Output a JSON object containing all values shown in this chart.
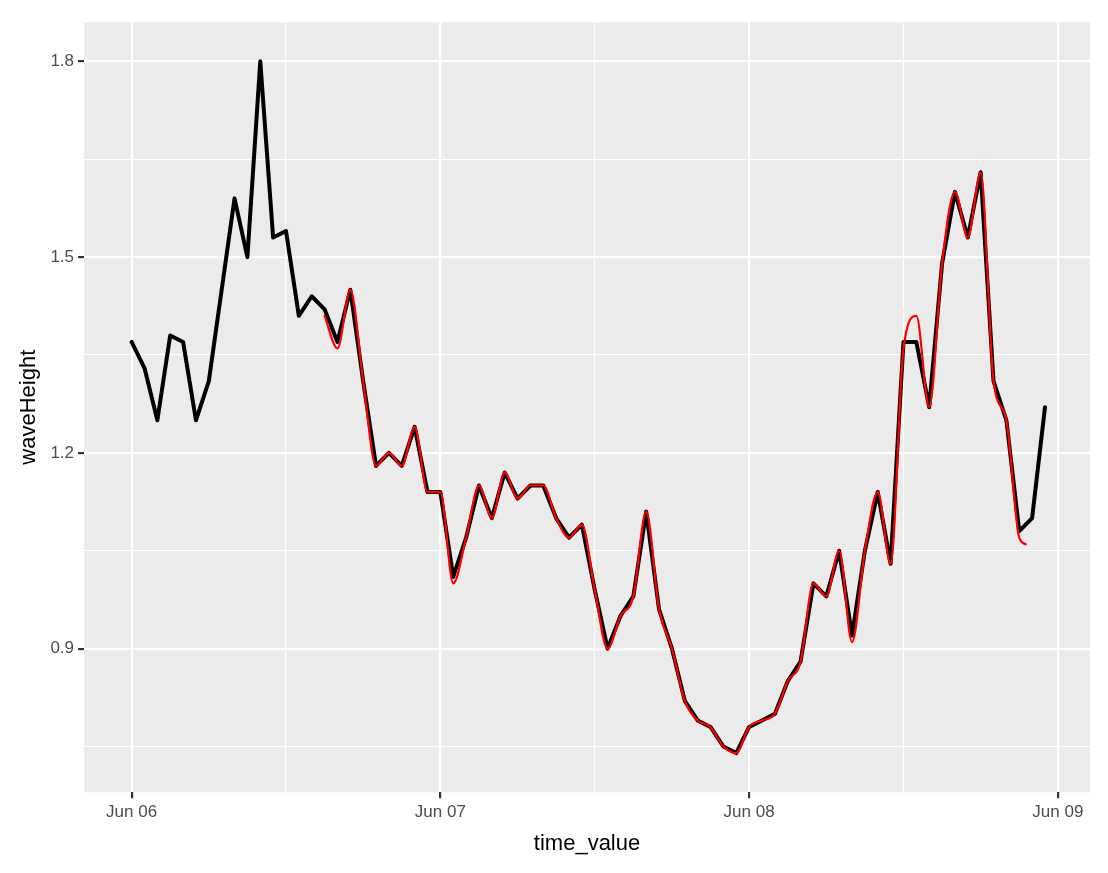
{
  "chart_data": {
    "type": "line",
    "xlabel": "time_value",
    "ylabel": "waveHeight",
    "grid": true,
    "marker": "none",
    "line_style": "solid",
    "xlim": [
      "--06-05T20:18",
      "--06-09T02:30"
    ],
    "xticks": [
      {
        "value": "--06-06",
        "label": "Jun 06"
      },
      {
        "value": "--06-06T12:00",
        "label": null
      },
      {
        "value": "--06-07",
        "label": "Jun 07"
      },
      {
        "value": "--06-07T12:00",
        "label": null
      },
      {
        "value": "--06-08",
        "label": "Jun 08"
      },
      {
        "value": "--06-08T12:00",
        "label": null
      },
      {
        "value": "--06-09",
        "label": "Jun 09"
      }
    ],
    "ylim": [
      0.68,
      1.86
    ],
    "yticks": [
      {
        "value": 0.75,
        "label": null
      },
      0.9,
      {
        "value": 1.05,
        "label": null
      },
      1.2,
      {
        "value": 1.35,
        "label": null
      },
      1.5,
      {
        "value": 1.65,
        "label": null
      },
      1.8
    ],
    "series": [
      {
        "color": "#000000",
        "x": [
          "--06-06T00:00",
          "--06-06T01:00",
          "--06-06T02:00",
          "--06-06T03:00",
          "--06-06T04:00",
          "--06-06T05:00",
          "--06-06T06:00",
          "--06-06T07:00",
          "--06-06T08:00",
          "--06-06T09:00",
          "--06-06T10:00",
          "--06-06T11:00",
          "--06-06T12:00",
          "--06-06T13:00",
          "--06-06T14:00",
          "--06-06T15:00",
          "--06-06T16:00",
          "--06-06T17:00",
          "--06-06T18:00",
          "--06-06T19:00",
          "--06-06T20:00",
          "--06-06T21:00",
          "--06-06T22:00",
          "--06-06T23:00",
          "--06-07T00:00",
          "--06-07T01:00",
          "--06-07T02:00",
          "--06-07T03:00",
          "--06-07T04:00",
          "--06-07T05:00",
          "--06-07T06:00",
          "--06-07T07:00",
          "--06-07T08:00",
          "--06-07T09:00",
          "--06-07T10:00",
          "--06-07T11:00",
          "--06-07T12:00",
          "--06-07T13:00",
          "--06-07T14:00",
          "--06-07T15:00",
          "--06-07T16:00",
          "--06-07T17:00",
          "--06-07T18:00",
          "--06-07T19:00",
          "--06-07T20:00",
          "--06-07T21:00",
          "--06-07T22:00",
          "--06-07T23:00",
          "--06-08T00:00",
          "--06-08T01:00",
          "--06-08T02:00",
          "--06-08T03:00",
          "--06-08T04:00",
          "--06-08T05:00",
          "--06-08T06:00",
          "--06-08T07:00",
          "--06-08T08:00",
          "--06-08T09:00",
          "--06-08T10:00",
          "--06-08T11:00",
          "--06-08T12:00",
          "--06-08T13:00",
          "--06-08T14:00",
          "--06-08T15:00",
          "--06-08T16:00",
          "--06-08T17:00",
          "--06-08T18:00",
          "--06-08T19:00",
          "--06-08T20:00",
          "--06-08T21:00",
          "--06-08T22:00",
          "--06-08T23:00"
        ],
        "values": [
          1.37,
          1.33,
          1.25,
          1.38,
          1.37,
          1.25,
          1.31,
          1.45,
          1.59,
          1.5,
          1.8,
          1.53,
          1.54,
          1.41,
          1.44,
          1.42,
          1.37,
          1.45,
          1.31,
          1.18,
          1.2,
          1.18,
          1.24,
          1.14,
          1.14,
          1.01,
          1.07,
          1.15,
          1.1,
          1.17,
          1.13,
          1.15,
          1.15,
          1.1,
          1.07,
          1.09,
          0.99,
          0.9,
          0.95,
          0.98,
          1.11,
          0.96,
          0.9,
          0.82,
          0.79,
          0.78,
          0.75,
          0.74,
          0.78,
          0.79,
          0.8,
          0.85,
          0.88,
          1.0,
          0.98,
          1.05,
          0.92,
          1.05,
          1.14,
          1.03,
          1.37,
          1.37,
          1.27,
          1.49,
          1.6,
          1.53,
          1.63,
          1.31,
          1.25,
          1.08,
          1.1,
          1.27
        ]
      },
      {
        "color": "#ff0000",
        "type": "line",
        "x": [
          "--06-06T15:00",
          "--06-06T16:00",
          "--06-06T17:00",
          "--06-06T18:00",
          "--06-06T19:00",
          "--06-06T20:00",
          "--06-06T21:00",
          "--06-06T22:00",
          "--06-06T23:00",
          "--06-07T00:00",
          "--06-07T01:00",
          "--06-07T02:00",
          "--06-07T03:00",
          "--06-07T04:00",
          "--06-07T05:00",
          "--06-07T06:00",
          "--06-07T07:00",
          "--06-07T08:00",
          "--06-07T09:00",
          "--06-07T10:00",
          "--06-07T11:00",
          "--06-07T12:00",
          "--06-07T13:00",
          "--06-07T14:00",
          "--06-07T15:00",
          "--06-07T16:00",
          "--06-07T17:00",
          "--06-07T18:00",
          "--06-07T19:00",
          "--06-07T20:00",
          "--06-07T21:00",
          "--06-07T22:00",
          "--06-07T23:00",
          "--06-08T00:00",
          "--06-08T01:00",
          "--06-08T02:00",
          "--06-08T03:00",
          "--06-08T04:00",
          "--06-08T05:00",
          "--06-08T06:00",
          "--06-08T07:00",
          "--06-08T08:00",
          "--06-08T09:00",
          "--06-08T10:00",
          "--06-08T11:00",
          "--06-08T12:00",
          "--06-08T13:00",
          "--06-08T14:00",
          "--06-08T15:00",
          "--06-08T16:00",
          "--06-08T17:00",
          "--06-08T18:00",
          "--06-08T19:00",
          "--06-08T20:00",
          "--06-08T21:00",
          "--06-08T21:30"
        ],
        "values": [
          1.41,
          1.36,
          1.45,
          1.31,
          1.18,
          1.2,
          1.18,
          1.24,
          1.14,
          1.14,
          1.0,
          1.07,
          1.15,
          1.1,
          1.17,
          1.13,
          1.15,
          1.15,
          1.1,
          1.07,
          1.09,
          0.99,
          0.9,
          0.95,
          0.98,
          1.11,
          0.96,
          0.9,
          0.82,
          0.79,
          0.78,
          0.75,
          0.74,
          0.78,
          0.79,
          0.8,
          0.85,
          0.88,
          1.0,
          0.98,
          1.05,
          0.91,
          1.05,
          1.14,
          1.03,
          1.36,
          1.41,
          1.27,
          1.49,
          1.6,
          1.53,
          1.63,
          1.31,
          1.25,
          1.07,
          1.06
        ]
      }
    ]
  }
}
